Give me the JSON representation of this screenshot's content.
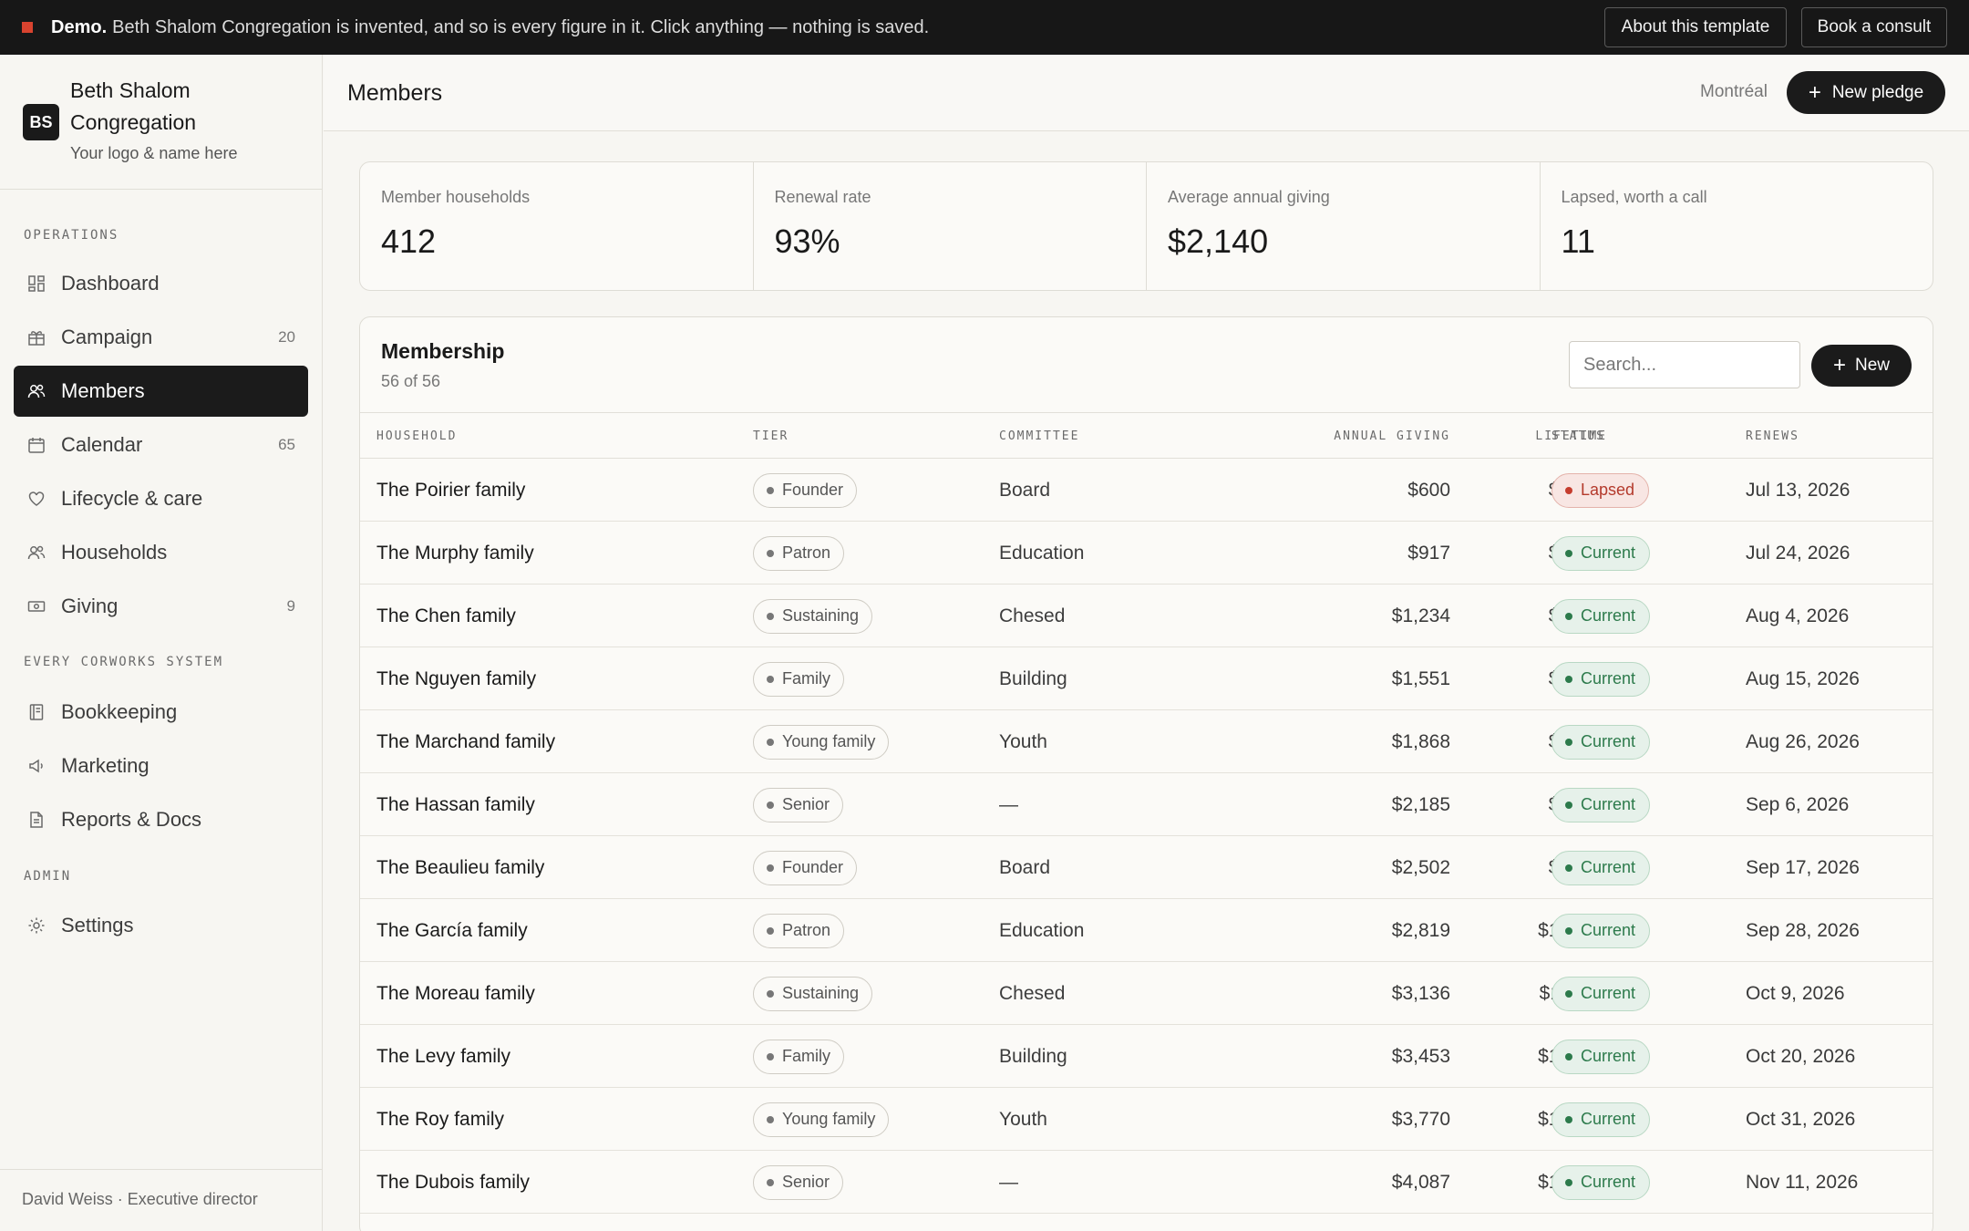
{
  "banner": {
    "bold": "Demo.",
    "message": "Beth Shalom Congregation is invented, and so is every figure in it. Click anything — nothing is saved.",
    "about_label": "About this template",
    "consult_label": "Book a consult"
  },
  "brand": {
    "logo": "BS",
    "name": "Beth Shalom Congregation",
    "sub": "Your logo & name here"
  },
  "sidebar": {
    "sections": {
      "operations": "OPERATIONS",
      "system": "EVERY CORWORKS SYSTEM",
      "admin": "ADMIN"
    },
    "items": [
      {
        "label": "Dashboard",
        "icon": "dashboard-icon",
        "count": ""
      },
      {
        "label": "Campaign",
        "icon": "gift-icon",
        "count": "20"
      },
      {
        "label": "Members",
        "icon": "members-icon",
        "count": ""
      },
      {
        "label": "Calendar",
        "icon": "calendar-icon",
        "count": "65"
      },
      {
        "label": "Lifecycle & care",
        "icon": "heart-icon",
        "count": ""
      },
      {
        "label": "Households",
        "icon": "households-icon",
        "count": ""
      },
      {
        "label": "Giving",
        "icon": "money-icon",
        "count": "9"
      },
      {
        "label": "Bookkeeping",
        "icon": "ledger-icon",
        "count": ""
      },
      {
        "label": "Marketing",
        "icon": "megaphone-icon",
        "count": ""
      },
      {
        "label": "Reports & Docs",
        "icon": "document-icon",
        "count": ""
      },
      {
        "label": "Settings",
        "icon": "gear-icon",
        "count": ""
      }
    ],
    "active_item": "Members",
    "footer": "David Weiss · Executive director"
  },
  "header": {
    "title": "Members",
    "location": "Montréal",
    "new_pledge_label": "New pledge"
  },
  "kpis": [
    {
      "label": "Member households",
      "value": "412"
    },
    {
      "label": "Renewal rate",
      "value": "93%"
    },
    {
      "label": "Average annual giving",
      "value": "$2,140"
    },
    {
      "label": "Lapsed, worth a call",
      "value": "11"
    }
  ],
  "membership": {
    "title": "Membership",
    "count": "56 of 56",
    "search_placeholder": "Search...",
    "new_label": "New",
    "columns": [
      "HOUSEHOLD",
      "TIER",
      "COMMITTEE",
      "ANNUAL GIVING",
      "LIFETIME",
      "STATUS",
      "RENEWS"
    ],
    "rows": [
      {
        "household": "The Poirier family",
        "tier": "Founder",
        "committee": "Board",
        "annual": "$600",
        "lifetime": "$4,000",
        "status": "Lapsed",
        "renews": "Jul 13, 2026"
      },
      {
        "household": "The Murphy family",
        "tier": "Patron",
        "committee": "Education",
        "annual": "$917",
        "lifetime": "$4,971",
        "status": "Current",
        "renews": "Jul 24, 2026"
      },
      {
        "household": "The Chen family",
        "tier": "Sustaining",
        "committee": "Chesed",
        "annual": "$1,234",
        "lifetime": "$5,942",
        "status": "Current",
        "renews": "Aug 4, 2026"
      },
      {
        "household": "The Nguyen family",
        "tier": "Family",
        "committee": "Building",
        "annual": "$1,551",
        "lifetime": "$6,913",
        "status": "Current",
        "renews": "Aug 15, 2026"
      },
      {
        "household": "The Marchand family",
        "tier": "Young family",
        "committee": "Youth",
        "annual": "$1,868",
        "lifetime": "$7,884",
        "status": "Current",
        "renews": "Aug 26, 2026"
      },
      {
        "household": "The Hassan family",
        "tier": "Senior",
        "committee": "—",
        "annual": "$2,185",
        "lifetime": "$8,855",
        "status": "Current",
        "renews": "Sep 6, 2026"
      },
      {
        "household": "The Beaulieu family",
        "tier": "Founder",
        "committee": "Board",
        "annual": "$2,502",
        "lifetime": "$9,826",
        "status": "Current",
        "renews": "Sep 17, 2026"
      },
      {
        "household": "The García family",
        "tier": "Patron",
        "committee": "Education",
        "annual": "$2,819",
        "lifetime": "$10,797",
        "status": "Current",
        "renews": "Sep 28, 2026"
      },
      {
        "household": "The Moreau family",
        "tier": "Sustaining",
        "committee": "Chesed",
        "annual": "$3,136",
        "lifetime": "$11,768",
        "status": "Current",
        "renews": "Oct 9, 2026"
      },
      {
        "household": "The Levy family",
        "tier": "Family",
        "committee": "Building",
        "annual": "$3,453",
        "lifetime": "$12,739",
        "status": "Current",
        "renews": "Oct 20, 2026"
      },
      {
        "household": "The Roy family",
        "tier": "Young family",
        "committee": "Youth",
        "annual": "$3,770",
        "lifetime": "$13,710",
        "status": "Current",
        "renews": "Oct 31, 2026"
      },
      {
        "household": "The Dubois family",
        "tier": "Senior",
        "committee": "—",
        "annual": "$4,087",
        "lifetime": "$14,681",
        "status": "Current",
        "renews": "Nov 11, 2026"
      }
    ]
  },
  "colors": {
    "accent": "#1b1b1b",
    "banner_square": "#d8432f",
    "status_current": "#2c7a4b",
    "status_lapsed": "#b43a2c"
  }
}
